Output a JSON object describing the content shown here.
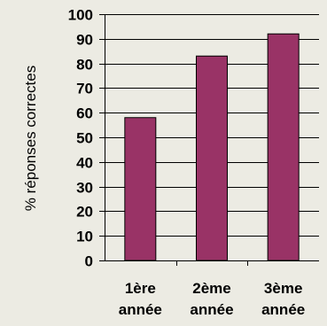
{
  "colors": {
    "background": "#ecebe3",
    "bar_fill": "#993366",
    "bar_stroke": "#000000",
    "gridline": "#000000"
  },
  "chart_data": {
    "type": "bar",
    "categories": [
      [
        "1ère",
        "année"
      ],
      [
        "2ème",
        "année"
      ],
      [
        "3ème",
        "année"
      ]
    ],
    "values": [
      58,
      83,
      92
    ],
    "title": "",
    "xlabel": "",
    "ylabel": "% réponses correctes",
    "ylim": [
      0,
      100
    ],
    "yticks": [
      0,
      10,
      20,
      30,
      40,
      50,
      60,
      70,
      80,
      90,
      100
    ],
    "grid": true
  }
}
